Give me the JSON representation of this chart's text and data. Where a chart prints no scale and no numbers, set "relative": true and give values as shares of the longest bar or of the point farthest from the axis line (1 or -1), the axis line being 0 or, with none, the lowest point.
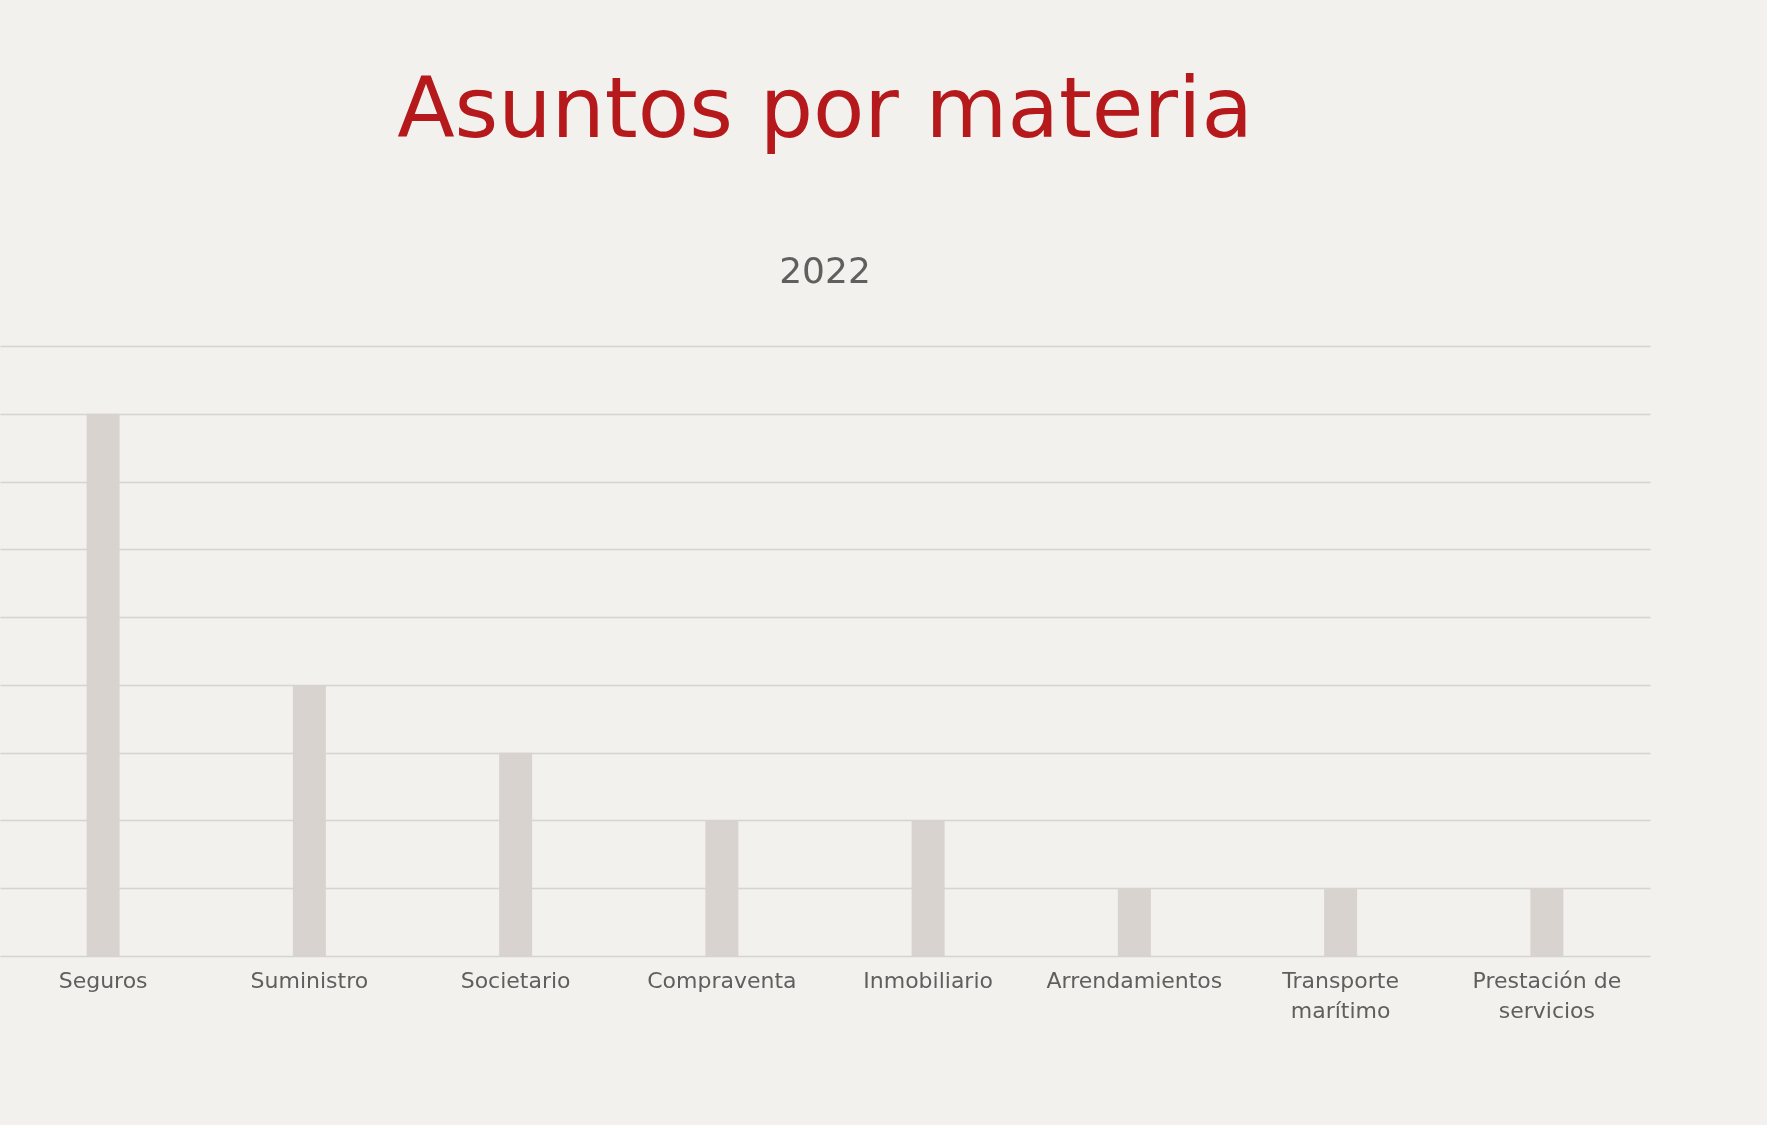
{
  "chart_data": {
    "type": "bar",
    "title": "Asuntos por materia",
    "subtitle": "2022",
    "categories": [
      "Seguros",
      "Suministro",
      "Societario",
      "Compraventa",
      "Inmobiliario",
      "Arrendamientos",
      "Transporte\nmarítimo",
      "Prestación de\nservicios"
    ],
    "values": [
      1,
      0.5,
      0.375,
      0.25,
      0.25,
      0.125,
      0.125,
      0.125
    ],
    "color": "#d8d3cf",
    "relative": true,
    "grid": "y"
  }
}
